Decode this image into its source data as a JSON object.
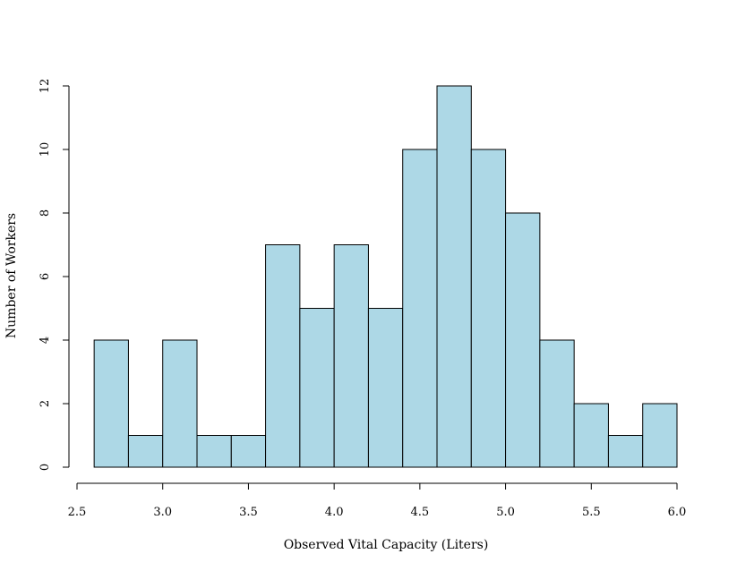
{
  "chart_data": {
    "type": "bar",
    "title": "",
    "xlabel": "Observed Vital Capacity (Liters)",
    "ylabel": "Number of Workers",
    "bin_width": 0.2,
    "bins": [
      {
        "start": 2.6,
        "end": 2.8,
        "count": 4
      },
      {
        "start": 2.8,
        "end": 3.0,
        "count": 1
      },
      {
        "start": 3.0,
        "end": 3.2,
        "count": 4
      },
      {
        "start": 3.2,
        "end": 3.4,
        "count": 1
      },
      {
        "start": 3.4,
        "end": 3.6,
        "count": 1
      },
      {
        "start": 3.6,
        "end": 3.8,
        "count": 7
      },
      {
        "start": 3.8,
        "end": 4.0,
        "count": 5
      },
      {
        "start": 4.0,
        "end": 4.2,
        "count": 7
      },
      {
        "start": 4.2,
        "end": 4.4,
        "count": 5
      },
      {
        "start": 4.4,
        "end": 4.6,
        "count": 10
      },
      {
        "start": 4.6,
        "end": 4.8,
        "count": 12
      },
      {
        "start": 4.8,
        "end": 5.0,
        "count": 10
      },
      {
        "start": 5.0,
        "end": 5.2,
        "count": 8
      },
      {
        "start": 5.2,
        "end": 5.4,
        "count": 4
      },
      {
        "start": 5.4,
        "end": 5.6,
        "count": 2
      },
      {
        "start": 5.6,
        "end": 5.8,
        "count": 1
      },
      {
        "start": 5.8,
        "end": 6.0,
        "count": 2
      }
    ],
    "xlim": [
      2.5,
      6.0
    ],
    "ylim": [
      0,
      12
    ],
    "x_ticks": [
      "2.5",
      "3.0",
      "3.5",
      "4.0",
      "4.5",
      "5.0",
      "5.5",
      "6.0"
    ],
    "y_ticks": [
      "0",
      "2",
      "4",
      "6",
      "8",
      "10",
      "12"
    ],
    "bar_color": "#add8e6",
    "grid": false,
    "legend": "none"
  }
}
